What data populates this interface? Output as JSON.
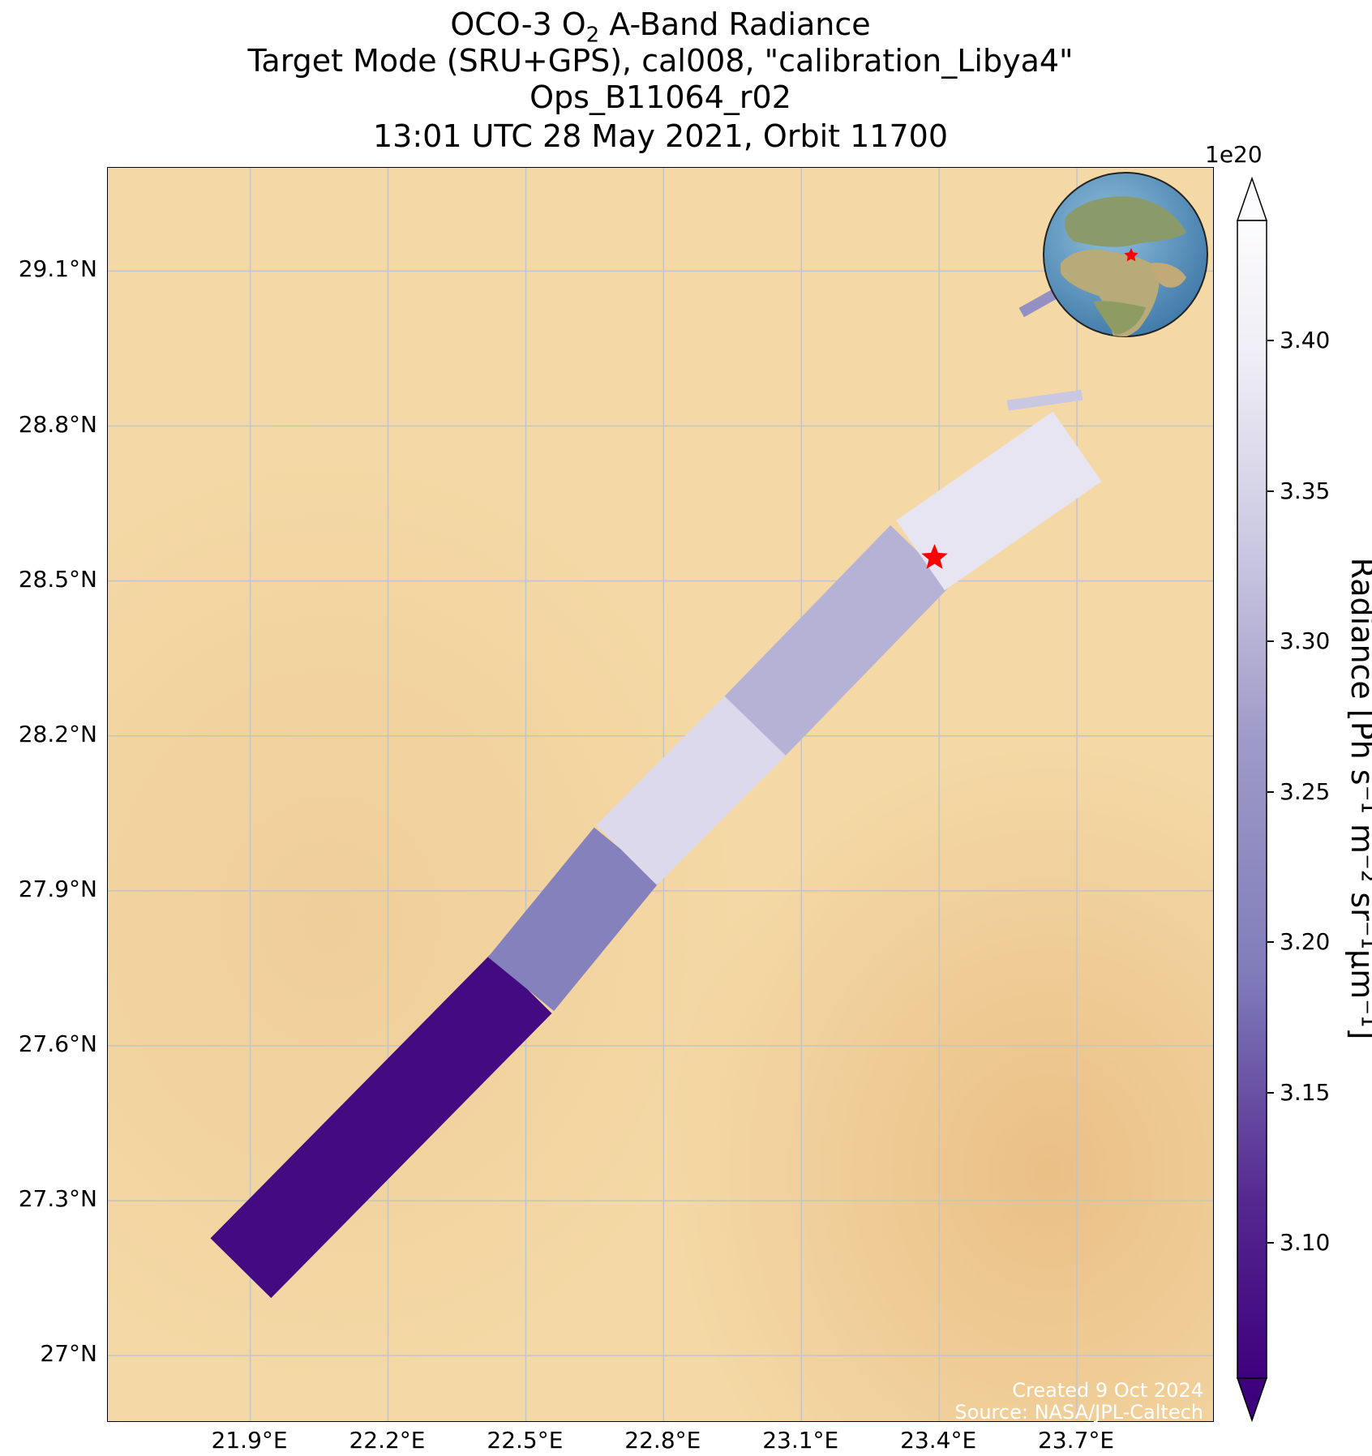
{
  "title": {
    "line1_prefix": "OCO-3 O",
    "line1_sub": "2",
    "line1_suffix": " A-Band Radiance",
    "line2": "Target Mode (SRU+GPS), cal008, \"calibration_Libya4\"",
    "line3": "Ops_B11064_r02",
    "line4": "13:01 UTC 28 May 2021, Orbit 11700"
  },
  "map": {
    "lon_range": [
      21.59,
      24.0
    ],
    "lat_range": [
      26.87,
      29.3
    ],
    "x_ticks": [
      "21.9°E",
      "22.2°E",
      "22.5°E",
      "22.8°E",
      "23.1°E",
      "23.4°E",
      "23.7°E"
    ],
    "x_tick_values": [
      21.9,
      22.2,
      22.5,
      22.8,
      23.1,
      23.4,
      23.7
    ],
    "y_ticks": [
      "29.1°N",
      "28.8°N",
      "28.5°N",
      "28.2°N",
      "27.9°N",
      "27.6°N",
      "27.3°N",
      "27°N"
    ],
    "y_tick_values": [
      29.1,
      28.8,
      28.5,
      28.2,
      27.9,
      27.6,
      27.3,
      27.0
    ],
    "background_color": "#f4d9a6",
    "grid_color": "#c4c4c4",
    "target_marker": {
      "lon": 23.39,
      "lat": 28.545,
      "color": "#ff0000",
      "symbol": "star"
    },
    "inset_globe": {
      "label": "globe-inset",
      "marker_color": "#ff0000"
    }
  },
  "colorbar": {
    "exponent_label": "1e20",
    "ticks": [
      "3.40",
      "3.35",
      "3.30",
      "3.25",
      "3.20",
      "3.15",
      "3.10"
    ],
    "tick_values": [
      3.4,
      3.35,
      3.3,
      3.25,
      3.2,
      3.15,
      3.1
    ],
    "vmin": 3.055,
    "vmax": 3.44,
    "colormap": "Purples_r",
    "label": "Radiance [Ph s⁻¹ m⁻² sr⁻¹µm⁻¹]",
    "extend": "both"
  },
  "chart_data": {
    "type": "heatmap",
    "title": "OCO-3 O2 A-Band Radiance",
    "variable": "Radiance",
    "units": "Ph s-1 m-2 sr-1 µm-1 (x1e20)",
    "swath_segments": [
      {
        "lat_start": 27.17,
        "lat_end": 27.72,
        "lon_start": 21.88,
        "lon_end": 22.49,
        "value": 3.07
      },
      {
        "lat_start": 27.72,
        "lat_end": 27.97,
        "lon_start": 22.49,
        "lon_end": 22.72,
        "value": 3.2
      },
      {
        "lat_start": 27.97,
        "lat_end": 28.22,
        "lon_start": 22.72,
        "lon_end": 23.0,
        "value": 3.36
      },
      {
        "lat_start": 28.22,
        "lat_end": 28.55,
        "lon_start": 23.0,
        "lon_end": 23.36,
        "value": 3.3
      },
      {
        "lat_start": 28.55,
        "lat_end": 28.76,
        "lon_start": 23.36,
        "lon_end": 23.7,
        "value": 3.38
      },
      {
        "lat_start": 28.84,
        "lat_end": 28.86,
        "lon_start": 23.55,
        "lon_end": 23.71,
        "value": 3.33
      },
      {
        "lat_start": 29.02,
        "lat_end": 29.06,
        "lon_start": 23.58,
        "lon_end": 23.66,
        "value": 3.24
      }
    ]
  },
  "credits": {
    "created": "Created 9 Oct 2024",
    "source": "Source: NASA/JPL-Caltech"
  }
}
